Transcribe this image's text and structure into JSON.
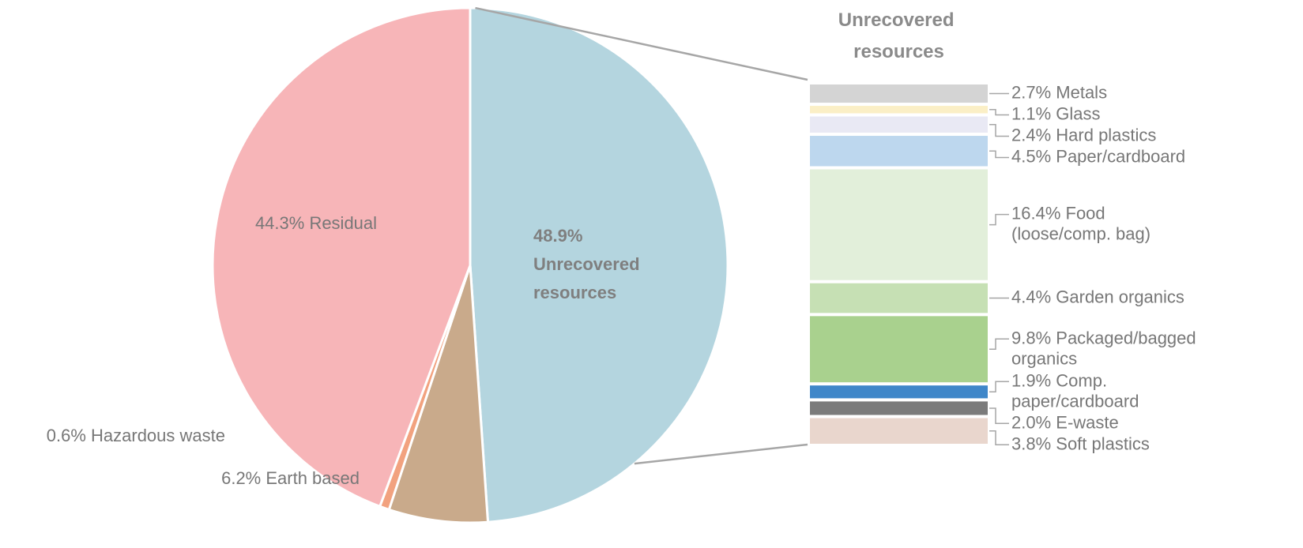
{
  "chart_data": [
    {
      "type": "pie",
      "categories": [
        "Unrecovered resources",
        "Earth based",
        "Hazardous waste",
        "Residual"
      ],
      "values": [
        48.9,
        6.2,
        0.6,
        44.3
      ],
      "value_labels": [
        "48.9%",
        "6.2%",
        "0.6%",
        "44.3%"
      ],
      "colors": [
        "#b4d5df",
        "#c9aa8b",
        "#f2a27f",
        "#f7b5b8"
      ]
    },
    {
      "type": "stacked-bar",
      "title": "Unrecovered resources",
      "categories": [
        "Metals",
        "Glass",
        "Hard plastics",
        "Paper/cardboard",
        "Food (loose/comp. bag)",
        "Garden organics",
        "Packaged/bagged organics",
        "Comp. paper/cardboard",
        "E-waste",
        "Soft plastics"
      ],
      "values": [
        2.7,
        1.1,
        2.4,
        4.5,
        16.4,
        4.4,
        9.8,
        1.9,
        2.0,
        3.8
      ],
      "value_labels": [
        "2.7%",
        "1.1%",
        "2.4%",
        "4.5%",
        "16.4%",
        "4.4%",
        "9.8%",
        "1.9%",
        "2.0%",
        "3.8%"
      ],
      "colors": [
        "#d4d4d4",
        "#fbefc6",
        "#e9e9f4",
        "#bdd7ee",
        "#e2efda",
        "#c6e0b4",
        "#a9d18e",
        "#3f87c9",
        "#7b7b7b",
        "#e9d6cd"
      ]
    }
  ]
}
